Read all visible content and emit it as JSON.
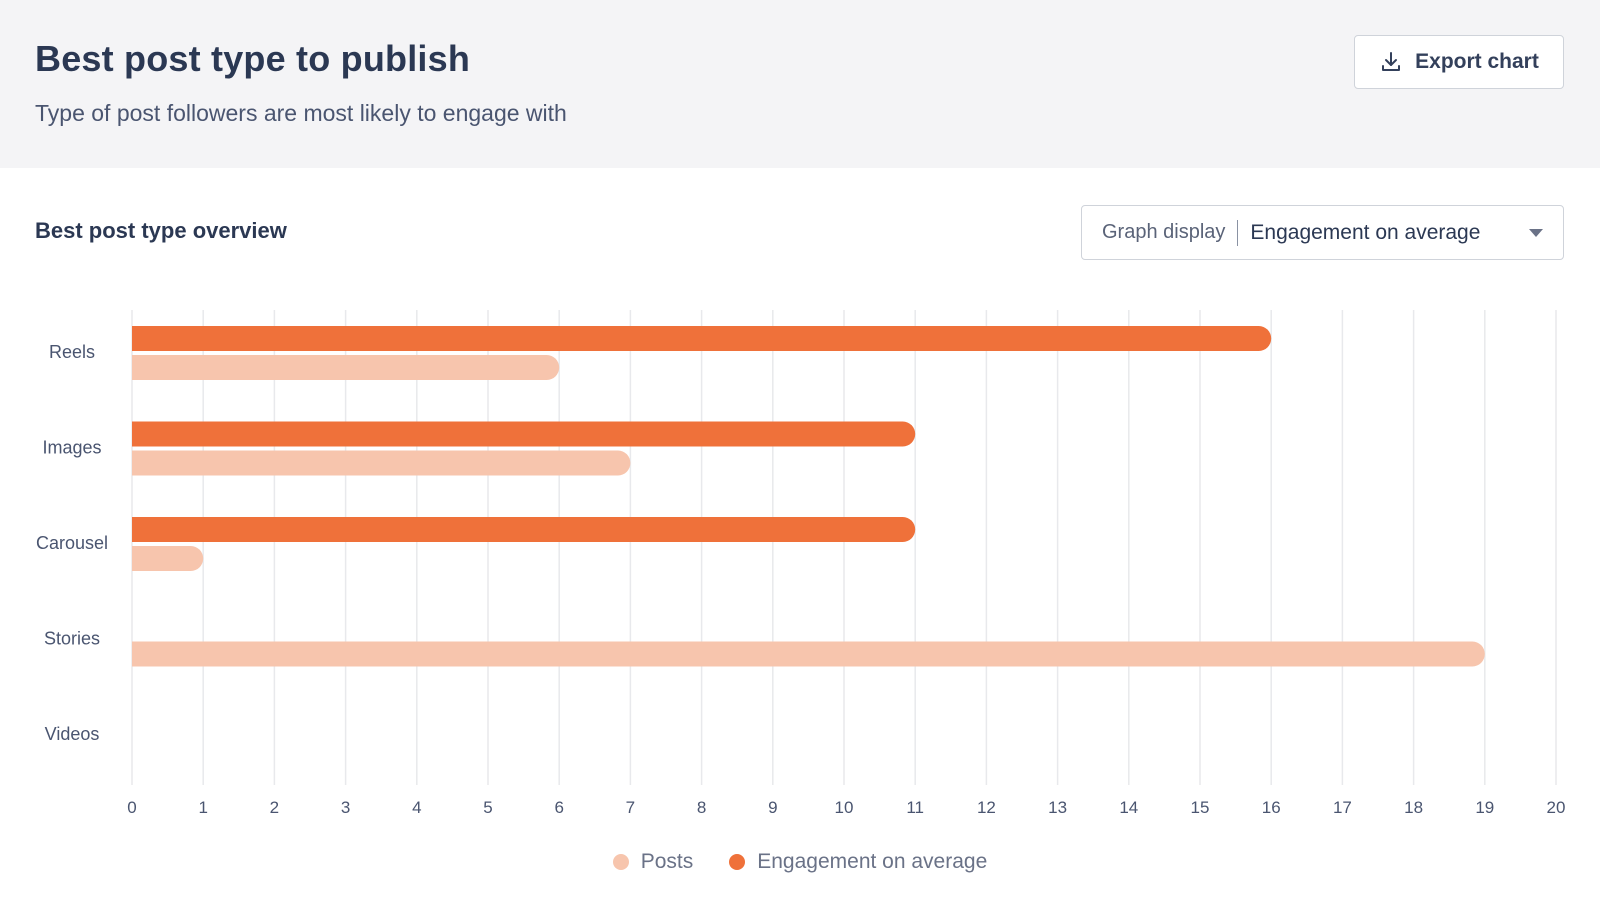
{
  "header": {
    "title": "Best post type to publish",
    "subtitle": "Type of post followers are most likely to engage with",
    "export_label": "Export chart"
  },
  "section": {
    "title": "Best post type overview",
    "graph_display_label": "Graph display",
    "graph_display_value": "Engagement on average"
  },
  "colors": {
    "engagement": "#ef713a",
    "posts": "#f7c5ad",
    "grid": "#e8e9ec",
    "tick_text": "#4a5570"
  },
  "chart_data": {
    "type": "bar",
    "orientation": "horizontal",
    "categories": [
      "Reels",
      "Images",
      "Carousel",
      "Stories",
      "Videos"
    ],
    "series": [
      {
        "name": "Engagement on average",
        "values": [
          16,
          11,
          11,
          0,
          0
        ]
      },
      {
        "name": "Posts",
        "values": [
          6,
          7,
          1,
          19,
          0
        ]
      }
    ],
    "x_ticks": [
      "0",
      "1",
      "2",
      "3",
      "4",
      "5",
      "6",
      "7",
      "8",
      "9",
      "10",
      "11",
      "12",
      "13",
      "14",
      "15",
      "16",
      "17",
      "18",
      "19",
      "20"
    ],
    "xlim": [
      0,
      20
    ],
    "grid": true,
    "legend_position": "bottom"
  },
  "legend": {
    "items": [
      {
        "label": "Posts"
      },
      {
        "label": "Engagement on average"
      }
    ]
  }
}
